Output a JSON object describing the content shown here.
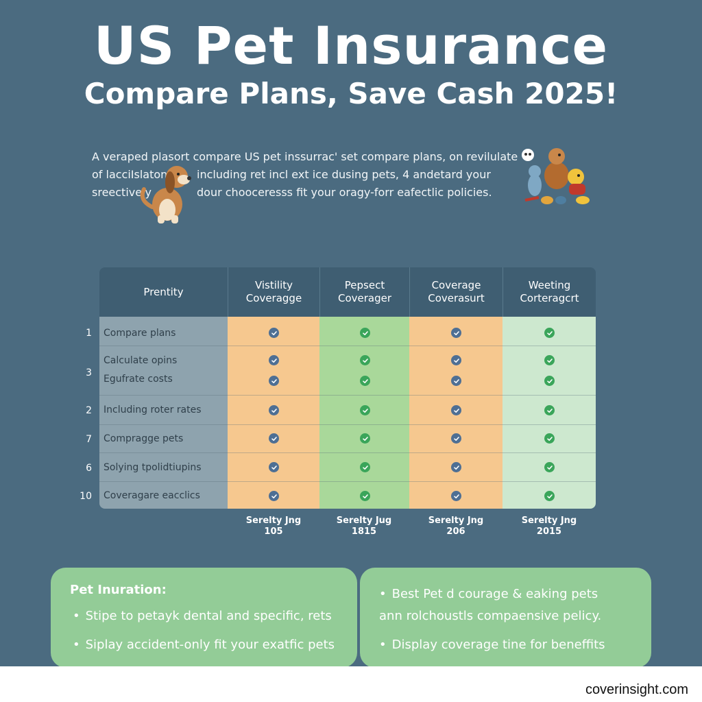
{
  "header": {
    "title": "US Pet Insurance",
    "subtitle": "Compare Plans, Save Cash 2025!"
  },
  "intro": {
    "line1": "A veraped plasort compare US pet inssurrac' set compare plans, on revilulate",
    "line2a": "of lacciIslaton",
    "line2b": "including ret incl ext ice dusing pets, 4 andetard your",
    "line3a": "sreectively",
    "line3b": "dour chooceresss fit your oragy-forr eafectlic policies."
  },
  "icons": {
    "left_illustration": "dog-icon",
    "right_illustration": "pets-group-icon",
    "check": "check-circle-icon"
  },
  "table": {
    "headers": [
      [
        "Prentity"
      ],
      [
        "Vistility",
        "Coveragge"
      ],
      [
        "Pepsect",
        "Coverager"
      ],
      [
        "Coverage",
        "Coverasurt"
      ],
      [
        "Weeting",
        "Corteragcrt"
      ]
    ],
    "rows": [
      {
        "num": "1",
        "labels": [
          "Compare plans"
        ]
      },
      {
        "num": "3",
        "labels": [
          "Calculate opins",
          "Egufrate costs"
        ]
      },
      {
        "num": "2",
        "labels": [
          "Including roter rates"
        ]
      },
      {
        "num": "7",
        "labels": [
          "Compragge pets"
        ]
      },
      {
        "num": "6",
        "labels": [
          "Solying tpolidtiupins"
        ]
      },
      {
        "num": "10",
        "labels": [
          "Coveragare eacclics"
        ]
      }
    ],
    "footers": [
      [
        "Serelty Jng",
        "105"
      ],
      [
        "Serelty Jug",
        "1815"
      ],
      [
        "Serelty Jng",
        "206"
      ],
      [
        "Serelty Jng",
        "2015"
      ]
    ]
  },
  "cards": {
    "left": {
      "title": "Pet Inuration:",
      "items": [
        "Stipe to petayk dental and specific, rets",
        "Siplay accident-only fit your exatfic pets"
      ]
    },
    "right": {
      "items": [
        "Best Pet d courage & eaking pets",
        "ann rolchoustls compaensive pelicy.",
        "Display coverage tine for beneffits"
      ]
    }
  },
  "footer": {
    "brand": "coverinsight.com"
  },
  "colors": {
    "background": "#4b6b80",
    "header_row": "#3f5e72",
    "orange_col": "#f6c88f",
    "green_col": "#a9d89a",
    "light_green_col": "#cde8cf",
    "card": "#93cc97"
  }
}
